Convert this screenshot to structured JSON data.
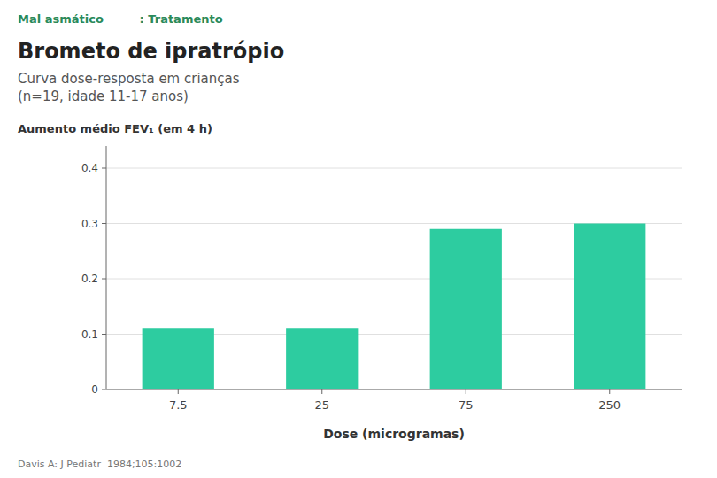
{
  "chart_data": {
    "type": "bar",
    "title": "Brometo de ipratrópio",
    "subtitle": [
      "Curva dose-resposta em crianças",
      "(n=19, idade 11-17 anos)"
    ],
    "annotations": [
      "Mal asmático         : Tratamento",
      "Davis A: J Pediatr  1984;105:1002"
    ],
    "y_label": "Aumento médio FEV₁ (em 4 h)",
    "x_label": "Dose (microgramas)",
    "categories": [
      "7.5",
      "25",
      "75",
      "250"
    ],
    "values": [
      0.11,
      0.11,
      0.29,
      0.3
    ],
    "color": "#2dcca0",
    "ylim": [
      0,
      0.44
    ],
    "yticks": [
      0,
      0.1,
      0.2,
      0.3,
      0.4
    ],
    "grid": true
  }
}
